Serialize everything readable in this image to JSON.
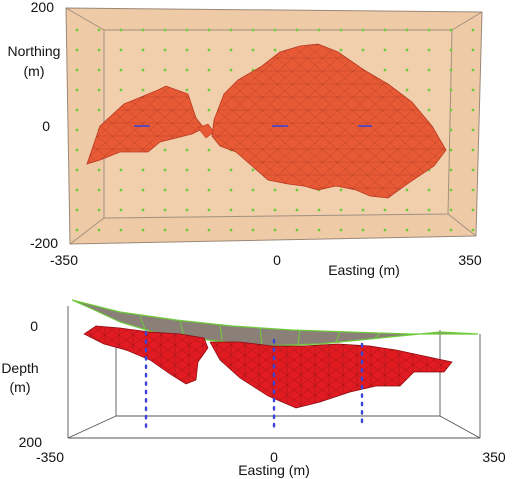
{
  "plan_view": {
    "y_tick_top": "200",
    "y_tick_mid": "0",
    "y_tick_bottom": "-200",
    "ylabel_line1": "Northing",
    "ylabel_line2": "(m)",
    "x_tick_left": "-350",
    "x_tick_mid": "0",
    "x_tick_right": "350",
    "xlabel": "Easting (m)"
  },
  "section_view": {
    "y_tick_top": "0",
    "y_tick_bottom": "200",
    "ylabel_line1": "Depth",
    "ylabel_line2": "(m)",
    "x_tick_left": "-350",
    "x_tick_mid": "0",
    "x_tick_right": "350",
    "xlabel": "Easting (m)"
  },
  "colors": {
    "box_fill": "#efcaa6",
    "body_fill": "#e85a36",
    "body_fill_section": "#e21b22",
    "grid_dot": "#6fcb3b",
    "borehole_dot": "#3a44d6",
    "surface_fill": "#8a8078"
  }
}
